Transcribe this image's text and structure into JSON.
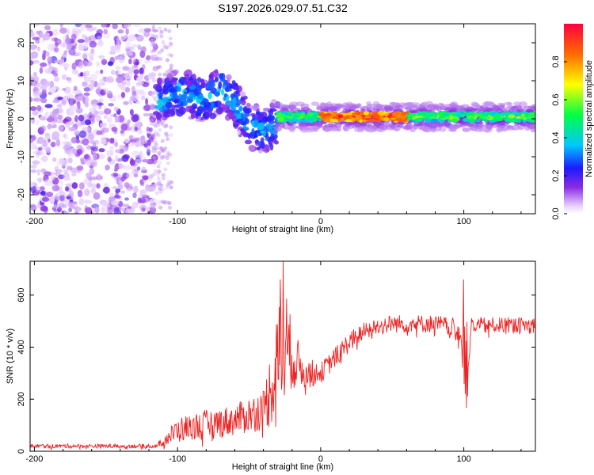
{
  "title": "S197.2026.029.07.51.C32",
  "colors": {
    "snr_line": "#ee2222",
    "axis": "#000000"
  },
  "chart_data": [
    {
      "type": "heatmap",
      "name": "spectrogram",
      "xlabel": "Height of straight line (km)",
      "ylabel": "Frequency (Hz)",
      "xlim": [
        -203,
        150
      ],
      "ylim": [
        -25,
        25
      ],
      "xticks": [
        -200,
        -100,
        0,
        100
      ],
      "xtick_labels": [
        "-200",
        "-100",
        "0",
        "100"
      ],
      "yticks": [
        20,
        10,
        0,
        -10,
        -20
      ],
      "ytick_labels": [
        "20",
        "10",
        "0",
        "-10",
        "-20"
      ],
      "colorbar": {
        "label": "Normalized spectral amplitude",
        "range": [
          0,
          1
        ],
        "ticks": [
          0.0,
          0.2,
          0.4,
          0.6,
          0.8
        ],
        "tick_labels": [
          "0.0",
          "0.2",
          "0.4",
          "0.6",
          "0.8"
        ]
      },
      "features": [
        {
          "region": "noise",
          "x_range": [
            -203,
            -115
          ],
          "freq_range": [
            -25,
            25
          ],
          "amplitude": 0.15
        },
        {
          "region": "descending_track",
          "x": [
            -115,
            -100,
            -90,
            -80,
            -70,
            -60,
            -50,
            -40,
            -30
          ],
          "freq": [
            4,
            7,
            6,
            5,
            8,
            4,
            -2,
            -3,
            -1
          ],
          "amplitude": 0.35
        },
        {
          "region": "steady_track",
          "x_range": [
            -30,
            150
          ],
          "freq": 0.5,
          "amplitude": 0.55
        },
        {
          "region": "peak",
          "x_range": [
            0,
            60
          ],
          "freq": 0.3,
          "amplitude": 0.9
        }
      ]
    },
    {
      "type": "line",
      "name": "snr",
      "xlabel": "Height of straight line (km)",
      "ylabel": "SNR (10 * v/v)",
      "xlim": [
        -203,
        150
      ],
      "ylim": [
        0,
        730
      ],
      "xticks": [
        -200,
        -100,
        0,
        100
      ],
      "xtick_labels": [
        "-200",
        "-100",
        "0",
        "100"
      ],
      "yticks": [
        0,
        200,
        400,
        600
      ],
      "ytick_labels": [
        "0",
        "200",
        "400",
        "600"
      ],
      "series": [
        {
          "name": "SNR",
          "envelope_x": [
            -203,
            -115,
            -110,
            -100,
            -90,
            -80,
            -70,
            -60,
            -50,
            -40,
            -35,
            -30,
            -25,
            -20,
            -10,
            0,
            10,
            20,
            30,
            40,
            50,
            60,
            70,
            80,
            90,
            95,
            100,
            102,
            105,
            110,
            120,
            130,
            140,
            150
          ],
          "envelope_y": [
            20,
            20,
            40,
            80,
            95,
            100,
            110,
            120,
            140,
            160,
            240,
            350,
            420,
            360,
            300,
            300,
            360,
            420,
            460,
            480,
            490,
            490,
            490,
            490,
            480,
            470,
            420,
            300,
            480,
            480,
            485,
            485,
            485,
            485
          ],
          "noise_amplitude": [
            8,
            8,
            20,
            50,
            50,
            60,
            60,
            60,
            70,
            80,
            150,
            200,
            250,
            120,
            60,
            40,
            40,
            40,
            35,
            35,
            35,
            35,
            35,
            35,
            35,
            40,
            150,
            200,
            35,
            35,
            30,
            30,
            30,
            30
          ],
          "spikes": [
            {
              "x": -26,
              "y": 730
            },
            {
              "x": -28,
              "y": 660
            },
            {
              "x": 100,
              "y": 660
            },
            {
              "x": 101,
              "y": 220
            }
          ]
        }
      ]
    }
  ]
}
